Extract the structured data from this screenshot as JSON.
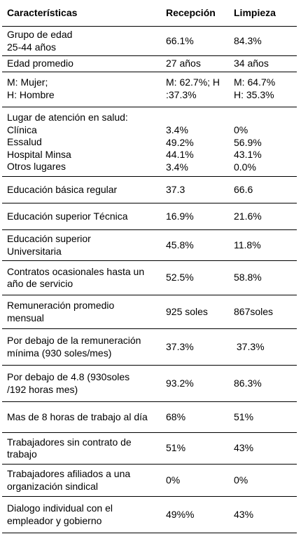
{
  "table": {
    "header": [
      "Características",
      "Recepción",
      "Limpieza"
    ],
    "rows": [
      [
        [
          "Grupo de edad",
          "25-44 años"
        ],
        [
          "66.1%"
        ],
        [
          "84.3%"
        ]
      ],
      [
        [
          "Edad promedio"
        ],
        [
          "27 años"
        ],
        [
          "34 años"
        ]
      ],
      [
        [
          "M: Mujer;",
          "H: Hombre"
        ],
        [
          "M: 62.7%; H",
          ":37.3%"
        ],
        [
          "M: 64.7%",
          "H: 35.3%"
        ]
      ],
      [
        [
          "Lugar de atención en salud:",
          "Clínica",
          "Essalud",
          "Hospital Minsa",
          "Otros lugares"
        ],
        [
          "3.4%",
          "49.2%",
          "44.1%",
          "3.4%"
        ],
        [
          "0%",
          "56.9%",
          "43.1%",
          "0.0%"
        ]
      ],
      [
        [
          "Educación básica regular"
        ],
        [
          "37.3"
        ],
        [
          "66.6"
        ]
      ],
      [
        [
          "Educación superior Técnica"
        ],
        [
          "16.9%"
        ],
        [
          "21.6%"
        ]
      ],
      [
        [
          "Educación superior",
          "Universitaria"
        ],
        [
          "45.8%"
        ],
        [
          "11.8%"
        ]
      ],
      [
        [
          "Contratos ocasionales hasta un",
          "año de servicio"
        ],
        [
          "52.5%"
        ],
        [
          "58.8%"
        ]
      ],
      [
        [
          "Remuneración promedio",
          "mensual"
        ],
        [
          "925 soles"
        ],
        [
          "867soles"
        ]
      ],
      [
        [
          "Por debajo de la remuneración",
          "mínima (930 soles/mes)"
        ],
        [
          "37.3%"
        ],
        [
          " 37.3%"
        ]
      ],
      [
        [
          "Por debajo de 4.8 (930soles",
          "/192 horas mes)"
        ],
        [
          "93.2%"
        ],
        [
          "86.3%"
        ]
      ],
      [
        [
          "Mas de 8 horas de trabajo al día"
        ],
        [
          "68%"
        ],
        [
          "51%"
        ]
      ],
      [
        [
          "Trabajadores sin contrato de",
          "trabajo"
        ],
        [
          "51%"
        ],
        [
          "43%"
        ]
      ],
      [
        [
          "Trabajadores afiliados a una",
          "organización sindical"
        ],
        [
          "0%"
        ],
        [
          "0%"
        ]
      ],
      [
        [
          "Dialogo individual con el",
          "empleador y gobierno"
        ],
        [
          "49%%"
        ],
        [
          "43%"
        ]
      ]
    ]
  }
}
